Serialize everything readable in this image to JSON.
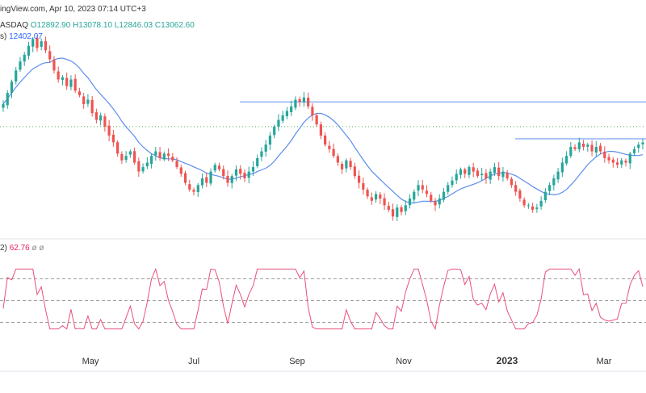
{
  "header": {
    "source": "ingView.com, Apr 10, 2023 07:14 UTC+3",
    "symbol": "ASDAQ",
    "ohlc": {
      "o": "O12892.90",
      "h": "H13078.10",
      "l": "L12846.03",
      "c": "C13062.60"
    },
    "ma_label": "s)",
    "ma_value": "12402.07",
    "rsi_label": "2)",
    "rsi_value": "62.76",
    "rsi_extra1": "ø",
    "rsi_extra2": "ø"
  },
  "colors": {
    "up": "#26a69a",
    "down": "#ef5350",
    "ma": "#5b8def",
    "rsi": "#e8517a",
    "hline": "#5b8def",
    "grid": "#9e9e9e",
    "dotted": "#4caf50"
  },
  "chart_data": [
    {
      "type": "candlestick",
      "title": "NASDAQ",
      "x_axis_ticks": [
        "May",
        "Jul",
        "Sep",
        "Nov",
        "2023",
        "Mar"
      ],
      "ylim": [
        10400,
        14800
      ],
      "grid": false,
      "candles_close": [
        13200,
        13450,
        13700,
        13950,
        14150,
        14300,
        14500,
        14650,
        14450,
        14600,
        14400,
        14200,
        13950,
        13750,
        13800,
        13600,
        13750,
        13500,
        13400,
        13200,
        13300,
        13000,
        12850,
        12950,
        12700,
        12500,
        12350,
        12100,
        11950,
        12050,
        12150,
        11900,
        11700,
        11800,
        11900,
        12050,
        12150,
        12000,
        12100,
        12050,
        11950,
        11800,
        11650,
        11450,
        11300,
        11250,
        11400,
        11550,
        11450,
        11700,
        11850,
        11750,
        11600,
        11450,
        11600,
        11750,
        11650,
        11550,
        11700,
        11800,
        12000,
        12150,
        12300,
        12500,
        12700,
        12850,
        12950,
        13050,
        13150,
        13300,
        13250,
        13350,
        13150,
        12950,
        12750,
        12500,
        12300,
        12200,
        12050,
        11900,
        11750,
        11950,
        11800,
        11600,
        11450,
        11300,
        11150,
        11050,
        11200,
        11100,
        10950,
        10850,
        10700,
        10900,
        10800,
        10950,
        11100,
        11250,
        11400,
        11300,
        11200,
        11050,
        10950,
        11100,
        11250,
        11400,
        11500,
        11650,
        11750,
        11650,
        11800,
        11700,
        11600,
        11650,
        11550,
        11700,
        11800,
        11600,
        11700,
        11550,
        11400,
        11250,
        11100,
        10950,
        10950,
        10850,
        10900,
        11050,
        11250,
        11400,
        11550,
        11700,
        11900,
        12050,
        12250,
        12200,
        12350,
        12250,
        12300,
        12150,
        12250,
        12150,
        12000,
        11950,
        11900,
        11850,
        11950,
        11900,
        12100,
        12200,
        12300,
        12350
      ],
      "ma_value": 12402.07,
      "resistance_levels": [
        13250,
        12430
      ]
    },
    {
      "type": "line",
      "title": "RSI",
      "value": 62.76,
      "ylim": [
        0,
        100
      ],
      "levels": [
        70,
        50,
        30
      ]
    }
  ]
}
